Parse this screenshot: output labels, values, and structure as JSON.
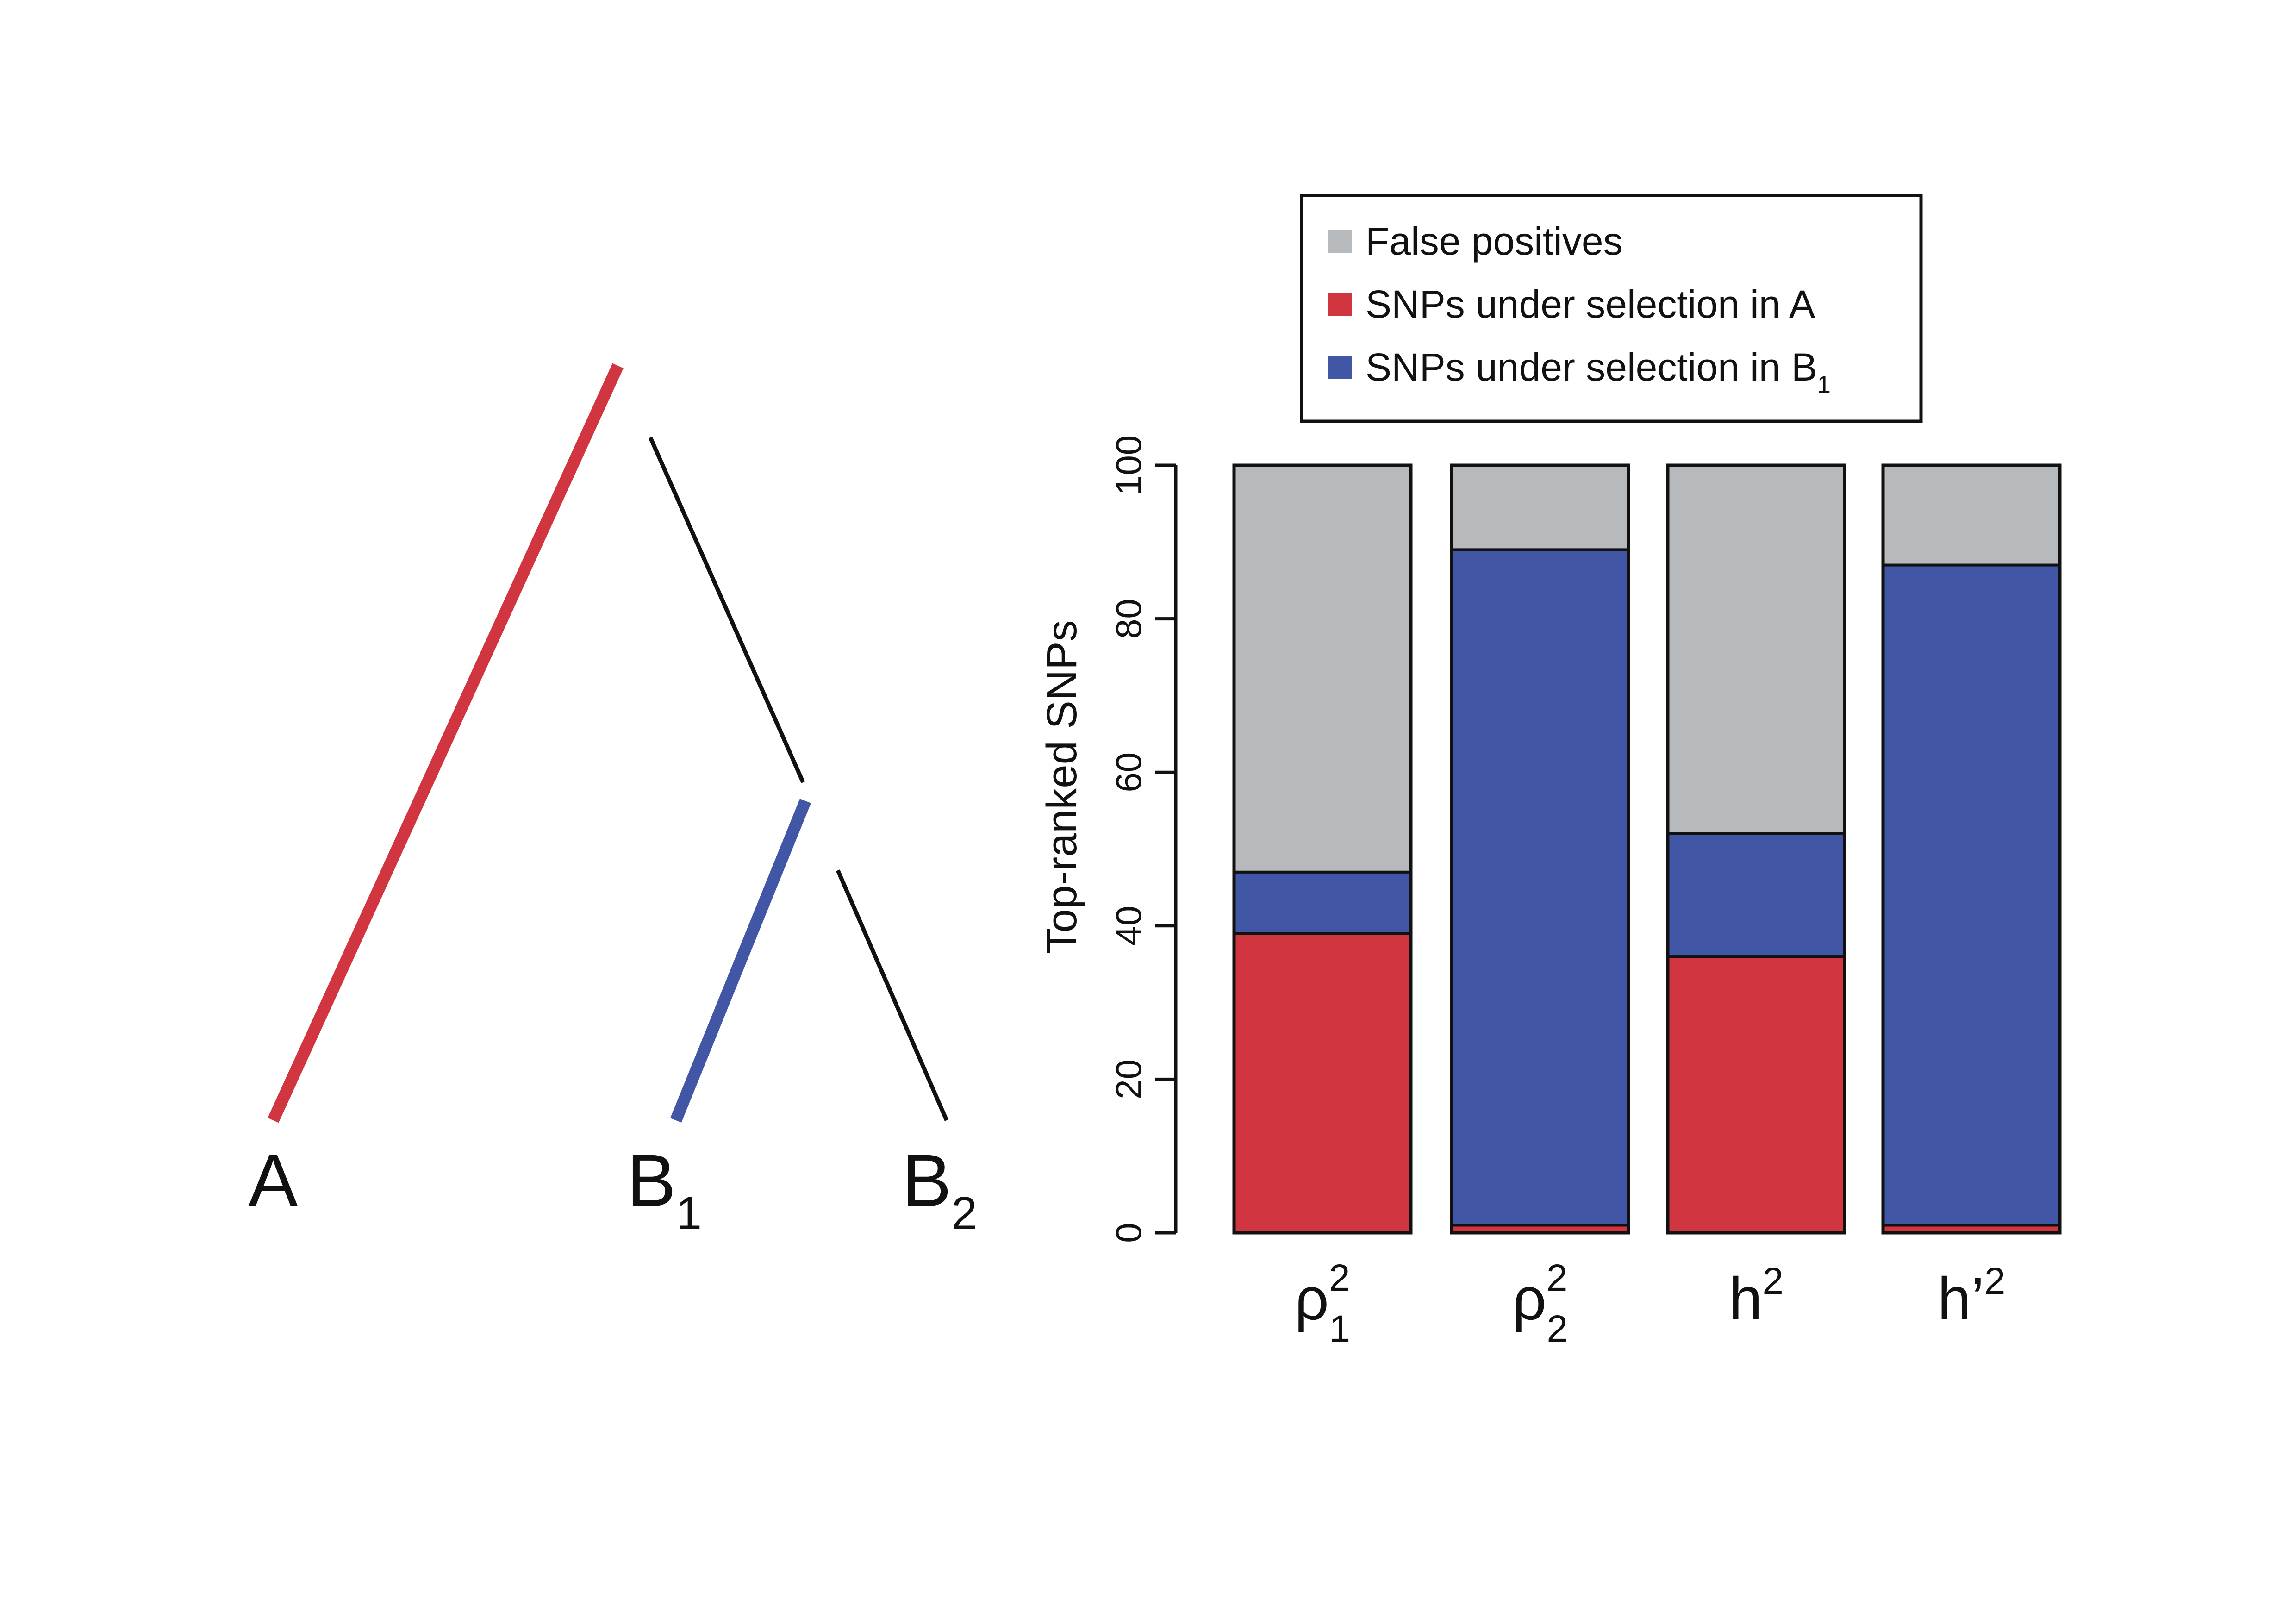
{
  "tree": {
    "leaves": [
      {
        "base": "A",
        "sub": ""
      },
      {
        "base": "B",
        "sub": "1"
      },
      {
        "base": "B",
        "sub": "2"
      }
    ],
    "colors": {
      "branch_A": "#d03540",
      "branch_B1": "#4256a6",
      "branch_other": "#111111"
    }
  },
  "chart_data": {
    "type": "bar",
    "stacked": true,
    "ylabel": "Top-ranked SNPs",
    "ylim": [
      0,
      100
    ],
    "yticks": [
      0,
      20,
      40,
      60,
      80,
      100
    ],
    "categories": [
      {
        "base": "ρ",
        "sup": "2",
        "sub": "1"
      },
      {
        "base": "ρ",
        "sup": "2",
        "sub": "2"
      },
      {
        "base": "h",
        "sup": "2",
        "sub": ""
      },
      {
        "base": "h’",
        "sup": "2",
        "sub": ""
      }
    ],
    "series": [
      {
        "name": "SNPs under selection in A",
        "color": "#d03540",
        "values": [
          39,
          1,
          36,
          1
        ]
      },
      {
        "name": "SNPs under selection in B",
        "name_sub": "1",
        "color": "#4256a6",
        "values": [
          8,
          88,
          16,
          86
        ]
      },
      {
        "name": "False positives",
        "color": "#b7babd",
        "values": [
          53,
          11,
          48,
          13
        ]
      }
    ],
    "legend": {
      "position": "top",
      "order": [
        2,
        0,
        1
      ]
    },
    "grid": false
  }
}
